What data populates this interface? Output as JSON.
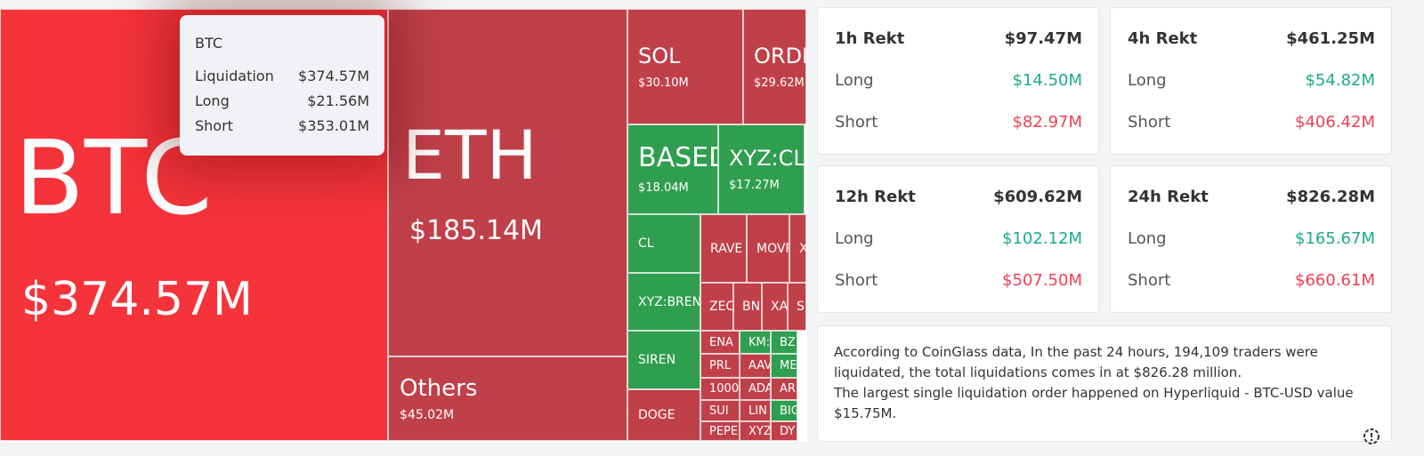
{
  "treemap": {
    "tiles": [
      {
        "label": "BTC",
        "value": "$374.57M",
        "color": "#f5333b"
      },
      {
        "label": "ETH",
        "value": "$185.14M",
        "color": "#c0404a"
      },
      {
        "label": "Others",
        "value": "$45.02M",
        "color": "#c0404a"
      },
      {
        "label": "SOL",
        "value": "$30.10M",
        "color": "#c0404a"
      },
      {
        "label": "ORDI",
        "value": "$29.62M",
        "color": "#c0404a"
      },
      {
        "label": "BASED",
        "value": "$18.04M",
        "color": "#2f9e4f"
      },
      {
        "label": "XYZ:CL",
        "value": "$17.27M",
        "color": "#2f9e4f"
      },
      {
        "label": "CL",
        "color": "#2f9e4f"
      },
      {
        "label": "XYZ:BRENT",
        "color": "#2f9e4f"
      },
      {
        "label": "SIREN",
        "color": "#2f9e4f"
      },
      {
        "label": "DOGE",
        "color": "#c0404a"
      },
      {
        "label": "RAVE",
        "color": "#c0404a"
      },
      {
        "label": "MOVR",
        "color": "#c0404a"
      },
      {
        "label": "X",
        "color": "#c0404a"
      },
      {
        "label": "ZEC",
        "color": "#c0404a"
      },
      {
        "label": "BN",
        "color": "#c0404a"
      },
      {
        "label": "XA",
        "color": "#c0404a"
      },
      {
        "label": "S",
        "color": "#c0404a"
      },
      {
        "label": "ENA",
        "color": "#c0404a"
      },
      {
        "label": "PRL",
        "color": "#c0404a"
      },
      {
        "label": "1000",
        "color": "#c0404a"
      },
      {
        "label": "SUI",
        "color": "#c0404a"
      },
      {
        "label": "PEPE",
        "color": "#c0404a"
      },
      {
        "label": "KM:",
        "color": "#2f9e4f"
      },
      {
        "label": "AAV",
        "color": "#c0404a"
      },
      {
        "label": "ADA",
        "color": "#c0404a"
      },
      {
        "label": "LIN",
        "color": "#c0404a"
      },
      {
        "label": "XYZ",
        "color": "#c0404a"
      },
      {
        "label": "BZ",
        "color": "#2f9e4f"
      },
      {
        "label": "ME",
        "color": "#2f9e4f"
      },
      {
        "label": "AR",
        "color": "#c0404a"
      },
      {
        "label": "BIG",
        "color": "#2f9e4f"
      },
      {
        "label": "DY",
        "color": "#c0404a"
      }
    ]
  },
  "tooltip": {
    "title": "BTC",
    "rows": [
      [
        "Liquidation",
        "$374.57M"
      ],
      [
        "Long",
        "$21.56M"
      ],
      [
        "Short",
        "$353.01M"
      ]
    ]
  },
  "cards": [
    {
      "title": "1h Rekt",
      "total": "$97.47M",
      "long_label": "Long",
      "long": "$14.50M",
      "short_label": "Short",
      "short": "$82.97M"
    },
    {
      "title": "4h Rekt",
      "total": "$461.25M",
      "long_label": "Long",
      "long": "$54.82M",
      "short_label": "Short",
      "short": "$406.42M"
    },
    {
      "title": "12h Rekt",
      "total": "$609.62M",
      "long_label": "Long",
      "long": "$102.12M",
      "short_label": "Short",
      "short": "$507.50M"
    },
    {
      "title": "24h Rekt",
      "total": "$826.28M",
      "long_label": "Long",
      "long": "$165.67M",
      "short_label": "Short",
      "short": "$660.61M"
    }
  ],
  "summary": [
    "According to CoinGlass data, In the past 24 hours, 194,109 traders were liquidated, the total liquidations comes in at $826.28 million.",
    "The largest single liquidation order happened on Hyperliquid - BTC-USD value $15.75M."
  ]
}
